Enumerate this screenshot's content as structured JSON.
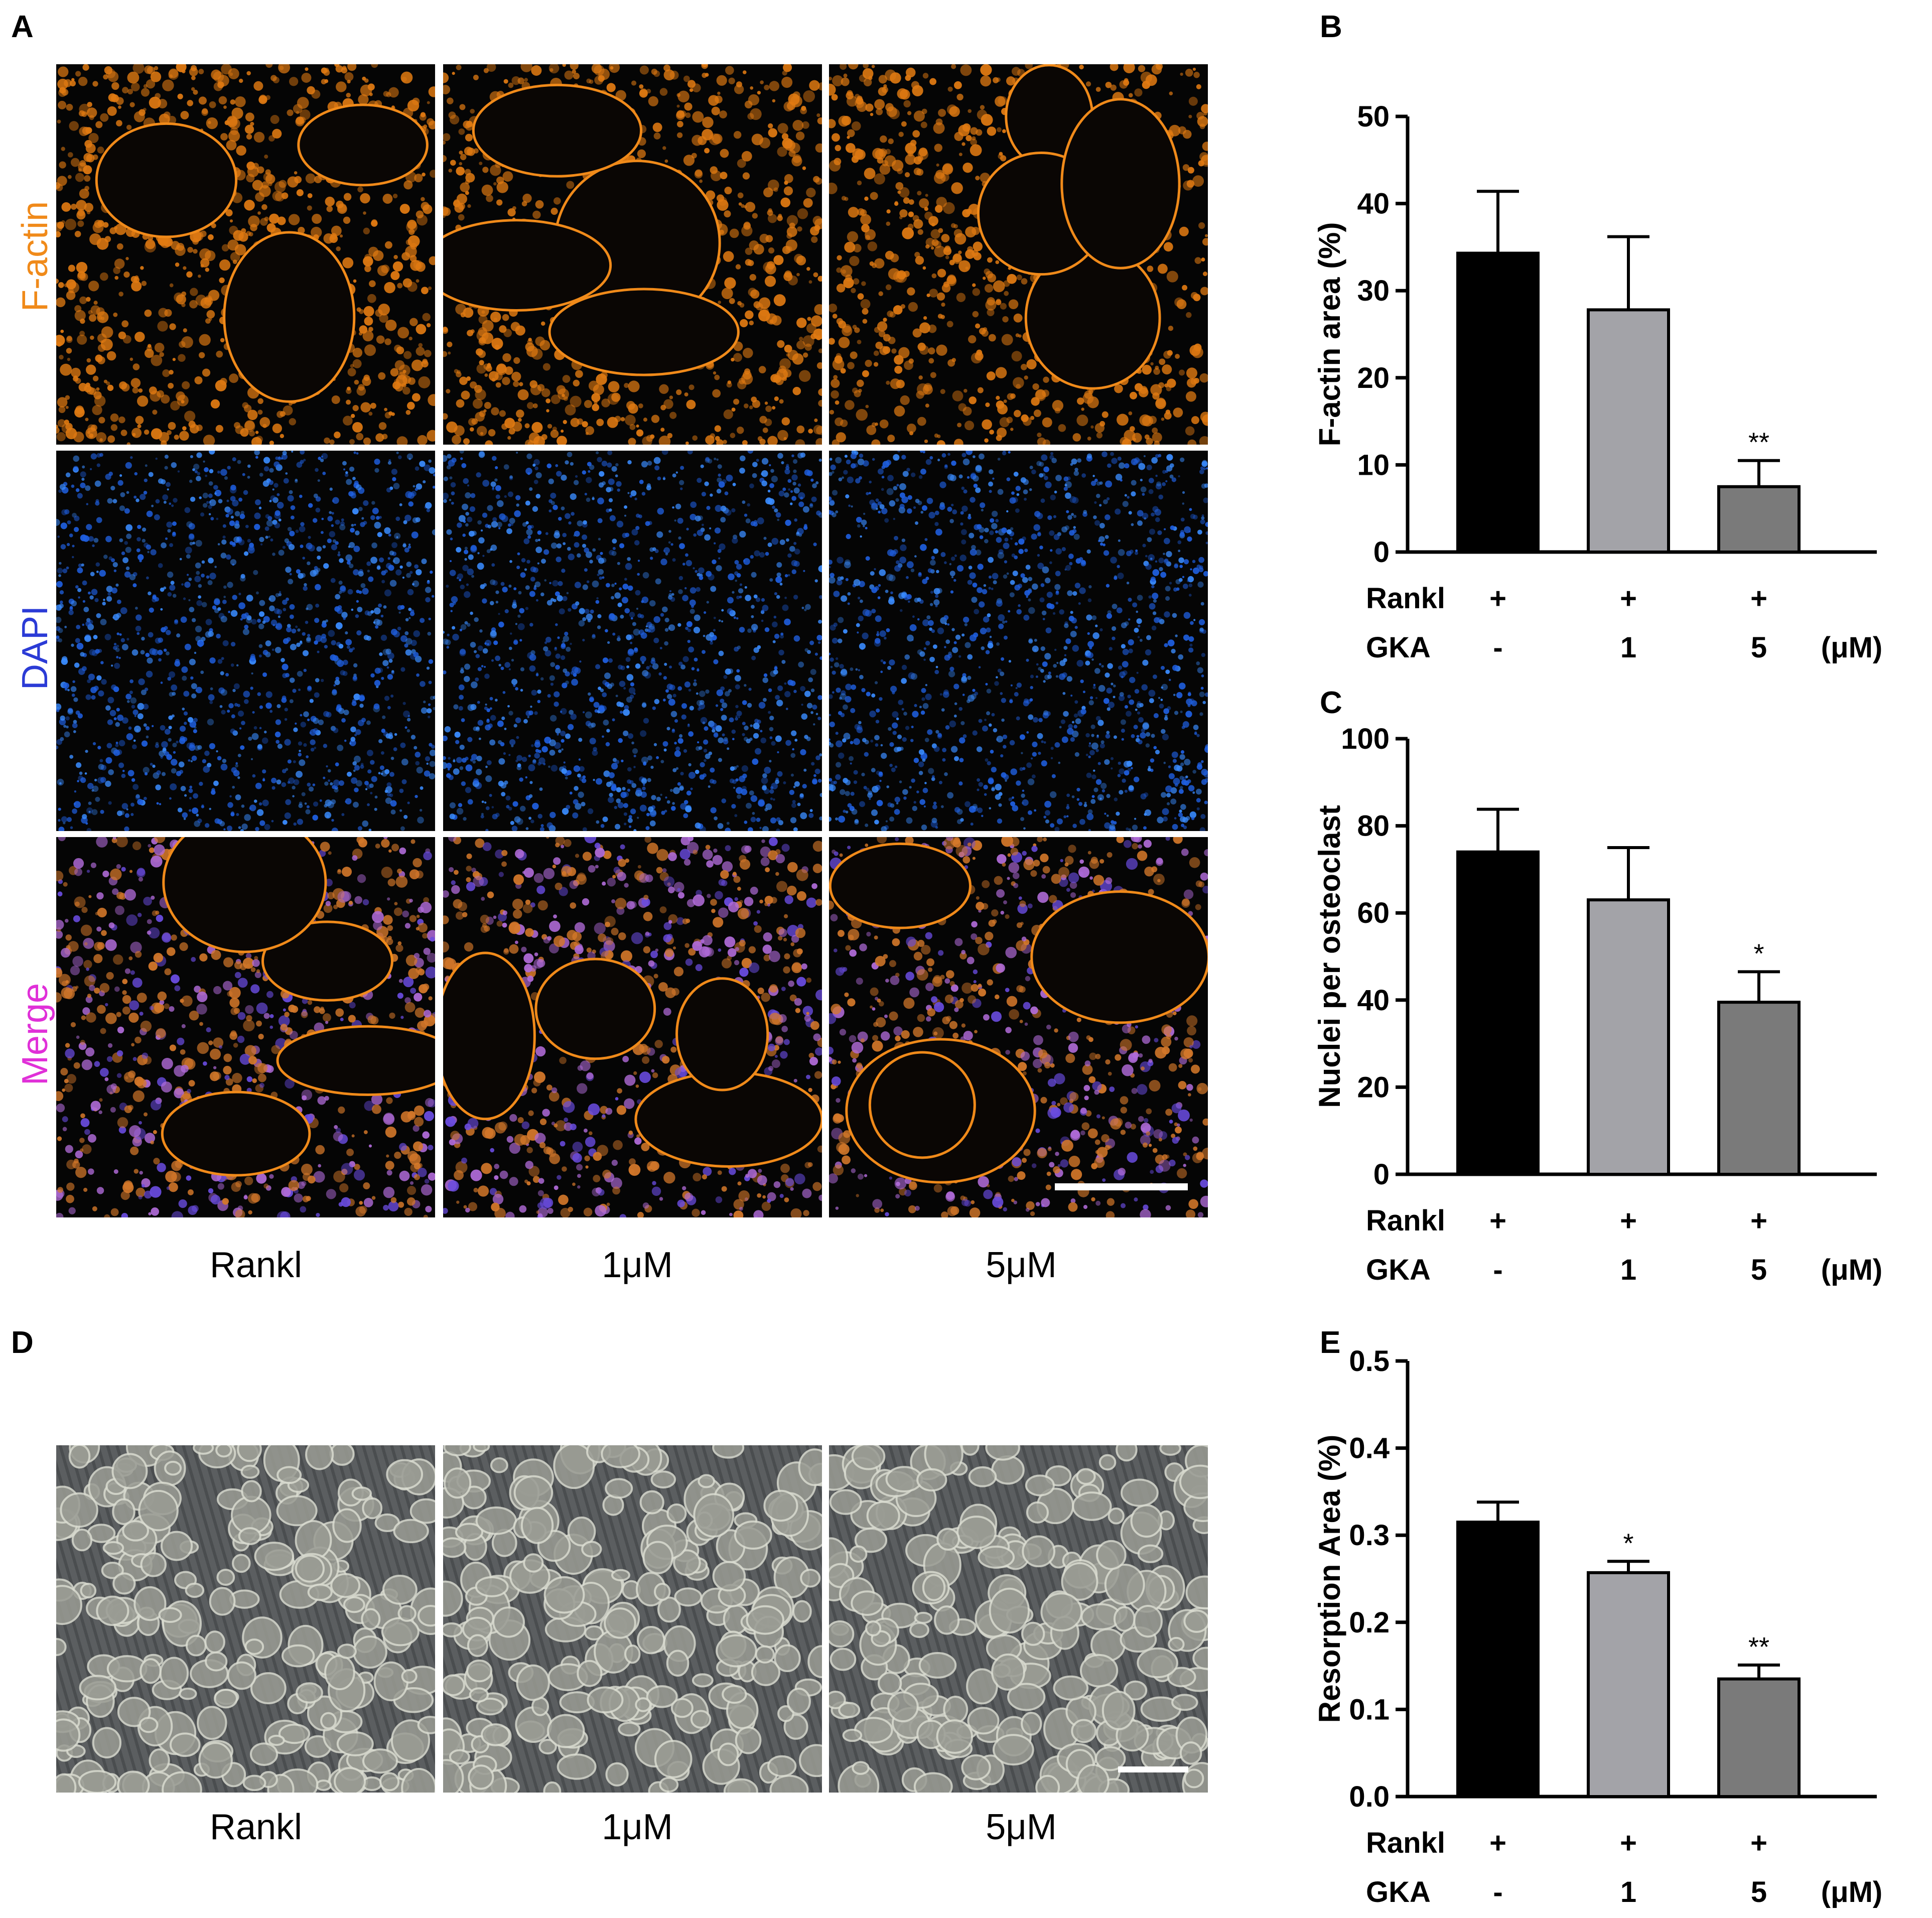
{
  "panels": {
    "A": {
      "letter": "A",
      "row_labels": [
        "F-actin",
        "DAPI",
        "Merge"
      ],
      "row_label_colors": [
        "#f08a1a",
        "#2b3bd6",
        "#e030d8"
      ],
      "col_labels": [
        "Rankl",
        "1μM",
        "5μM"
      ]
    },
    "D": {
      "letter": "D",
      "col_labels": [
        "Rankl",
        "1μM",
        "5μM"
      ]
    },
    "B": {
      "letter": "B"
    },
    "C": {
      "letter": "C"
    },
    "E": {
      "letter": "E"
    }
  },
  "chart_data": [
    {
      "panel": "B",
      "type": "bar",
      "ylabel": "F-actin area (%)",
      "ylim": [
        0,
        50
      ],
      "yticks": [
        "0",
        "10",
        "20",
        "30",
        "40",
        "50"
      ],
      "values": [
        34.3,
        27.8,
        7.5
      ],
      "errors": [
        7.1,
        8.4,
        3.0
      ],
      "significance": [
        "",
        "",
        "**"
      ],
      "bar_colors": [
        "#000000",
        "#a3a3a8",
        "#7a7a7a"
      ],
      "rows": [
        {
          "label": "Rankl",
          "values": [
            "+",
            "+",
            "+"
          ]
        },
        {
          "label": "GKA",
          "values": [
            "-",
            "1",
            "5"
          ]
        }
      ],
      "unit": "(μM)"
    },
    {
      "panel": "C",
      "type": "bar",
      "ylabel": "Nuclei per osteoclast",
      "ylim": [
        0,
        100
      ],
      "yticks": [
        "0",
        "20",
        "40",
        "60",
        "80",
        "100"
      ],
      "values": [
        74,
        63,
        39.5
      ],
      "errors": [
        9.8,
        12.0,
        7.0
      ],
      "significance": [
        "",
        "",
        "*"
      ],
      "bar_colors": [
        "#000000",
        "#a3a3a8",
        "#7a7a7a"
      ],
      "rows": [
        {
          "label": "Rankl",
          "values": [
            "+",
            "+",
            "+"
          ]
        },
        {
          "label": "GKA",
          "values": [
            "-",
            "1",
            "5"
          ]
        }
      ],
      "unit": "(μM)"
    },
    {
      "panel": "E",
      "type": "bar",
      "ylabel": "Resorption Area (%)",
      "ylim": [
        0,
        0.5
      ],
      "yticks": [
        "0.0",
        "0.1",
        "0.2",
        "0.3",
        "0.4",
        "0.5"
      ],
      "values": [
        0.315,
        0.257,
        0.135
      ],
      "errors": [
        0.023,
        0.013,
        0.016
      ],
      "significance": [
        "",
        "*",
        "**"
      ],
      "bar_colors": [
        "#000000",
        "#a3a3a8",
        "#7a7a7a"
      ],
      "rows": [
        {
          "label": "Rankl",
          "values": [
            "+",
            "+",
            "+"
          ]
        },
        {
          "label": "GKA",
          "values": [
            "-",
            "1",
            "5"
          ]
        }
      ],
      "unit": "(μM)"
    }
  ]
}
